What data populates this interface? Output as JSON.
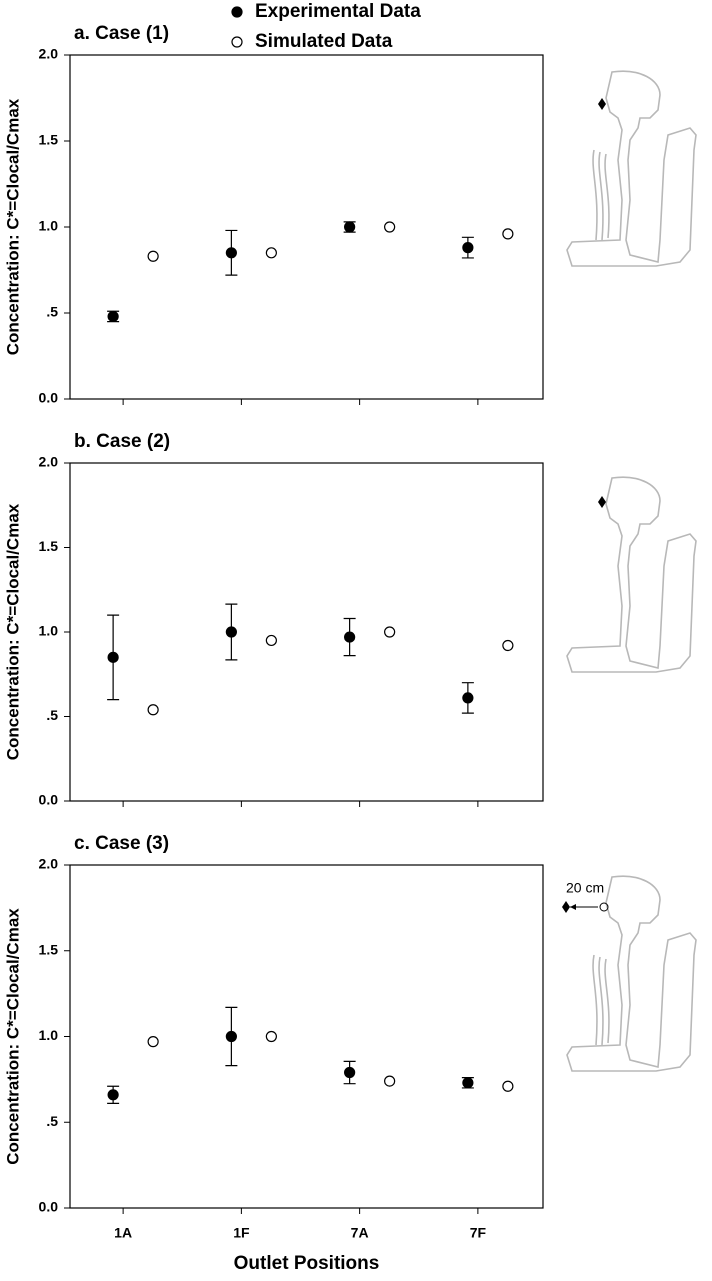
{
  "chart_data": [
    {
      "type": "scatter",
      "title": "a. Case (1)",
      "ylabel": "Concentration: C*=Clocal/Cmax",
      "ylim": [
        0,
        2
      ],
      "yticks": [
        {
          "value": 0,
          "label": "0.0"
        },
        {
          "value": 0.5,
          "label": ".5"
        },
        {
          "value": 1,
          "label": "1.0"
        },
        {
          "value": 1.5,
          "label": "1.5"
        },
        {
          "value": 2,
          "label": "2.0"
        }
      ],
      "series": [
        {
          "name": "Experimental Data",
          "color": "#000000",
          "marker": "filled",
          "values": [
            0.48,
            0.85,
            1.0,
            0.88
          ],
          "errors": [
            0.03,
            0.13,
            0.03,
            0.06
          ]
        },
        {
          "name": "Simulated Data",
          "color": "#000000",
          "marker": "open",
          "values": [
            0.83,
            0.85,
            1.0,
            0.96
          ]
        }
      ]
    },
    {
      "type": "scatter",
      "title": "b. Case (2)",
      "ylabel": "Concentration: C*=Clocal/Cmax",
      "ylim": [
        0,
        2
      ],
      "yticks": [
        {
          "value": 0,
          "label": "0.0"
        },
        {
          "value": 0.5,
          "label": ".5"
        },
        {
          "value": 1,
          "label": "1.0"
        },
        {
          "value": 1.5,
          "label": "1.5"
        },
        {
          "value": 2,
          "label": "2.0"
        }
      ],
      "series": [
        {
          "color": "#000000",
          "marker": "filled",
          "values": [
            0.85,
            1.0,
            0.97,
            0.61
          ],
          "errors": [
            0.25,
            0.165,
            0.11,
            0.09
          ]
        },
        {
          "color": "#000000",
          "marker": "open",
          "values": [
            0.54,
            0.95,
            1.0,
            0.92
          ]
        }
      ]
    },
    {
      "type": "scatter",
      "title": "c. Case (3)",
      "ylabel": "Concentration: C*=Clocal/Cmax",
      "xlabel": "Outlet Positions",
      "annotation": "20 cm",
      "categories": [
        "1A",
        "1F",
        "7A",
        "7F"
      ],
      "ylim": [
        0,
        2
      ],
      "yticks": [
        {
          "value": 0,
          "label": "0.0"
        },
        {
          "value": 0.5,
          "label": ".5"
        },
        {
          "value": 1,
          "label": "1.0"
        },
        {
          "value": 1.5,
          "label": "1.5"
        },
        {
          "value": 2,
          "label": "2.0"
        }
      ],
      "series": [
        {
          "color": "#000000",
          "marker": "filled",
          "values": [
            0.66,
            1.0,
            0.79,
            0.73
          ],
          "errors": [
            0.05,
            0.17,
            0.065,
            0.03
          ]
        },
        {
          "color": "#000000",
          "marker": "open",
          "values": [
            0.97,
            1.0,
            0.74,
            0.71
          ]
        }
      ]
    }
  ]
}
